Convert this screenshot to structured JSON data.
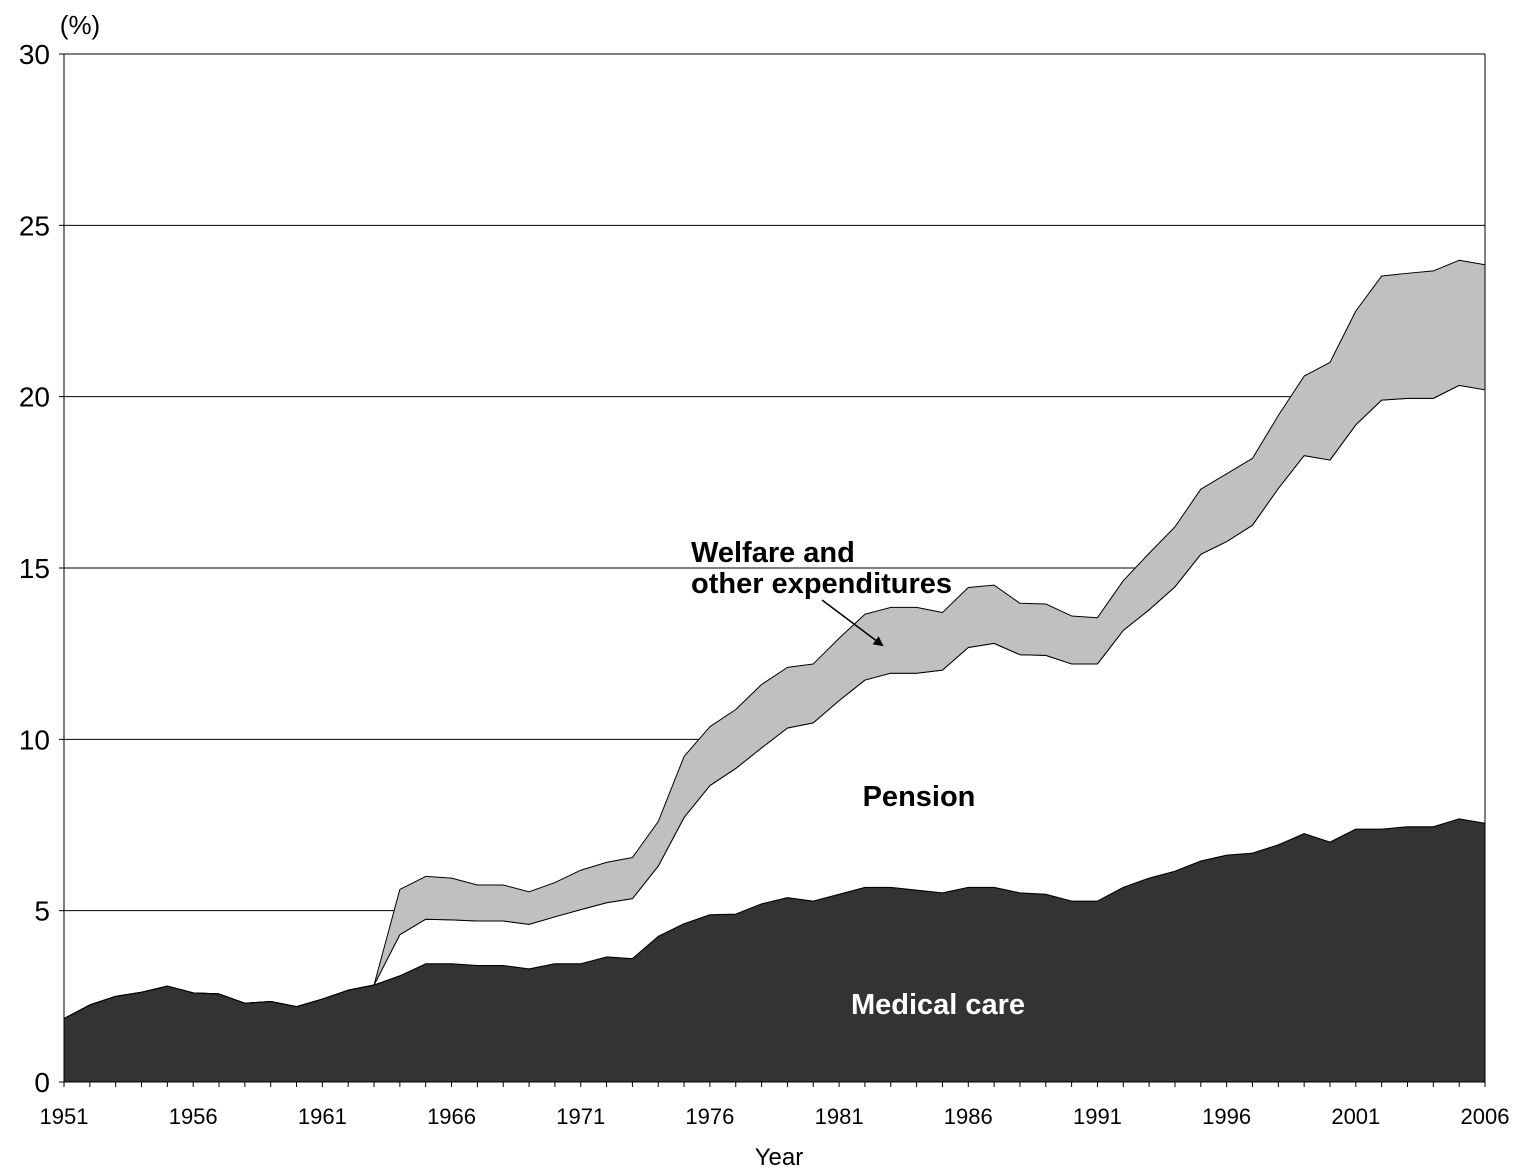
{
  "chart_data": {
    "type": "area",
    "stacked": true,
    "title": "",
    "ylabel_unit": "(%)",
    "xlabel": "Year",
    "ylim": [
      0,
      30
    ],
    "xlim": [
      1951,
      2006
    ],
    "yticks": [
      "0",
      "5",
      "10",
      "15",
      "20",
      "25",
      "30"
    ],
    "xticks": [
      "1951",
      "1956",
      "1961",
      "1966",
      "1971",
      "1976",
      "1981",
      "1986",
      "1991",
      "1996",
      "2001",
      "2006"
    ],
    "grid": "horizontal",
    "x": [
      1951,
      1952,
      1953,
      1954,
      1955,
      1956,
      1957,
      1958,
      1959,
      1960,
      1961,
      1962,
      1963,
      1964,
      1965,
      1966,
      1967,
      1968,
      1969,
      1970,
      1971,
      1972,
      1973,
      1974,
      1975,
      1976,
      1977,
      1978,
      1979,
      1980,
      1981,
      1982,
      1983,
      1984,
      1985,
      1986,
      1987,
      1988,
      1989,
      1990,
      1991,
      1992,
      1993,
      1994,
      1995,
      1996,
      1997,
      1998,
      1999,
      2000,
      2001,
      2002,
      2003,
      2004,
      2005,
      2006
    ],
    "series": [
      {
        "name": "Medical care",
        "color": "#333333",
        "values": [
          1.85,
          2.25,
          2.5,
          2.62,
          2.8,
          2.6,
          2.57,
          2.3,
          2.35,
          2.2,
          2.42,
          2.68,
          2.83,
          3.1,
          3.45,
          3.45,
          3.4,
          3.4,
          3.3,
          3.45,
          3.45,
          3.65,
          3.6,
          4.25,
          4.62,
          4.88,
          4.9,
          5.2,
          5.38,
          5.28,
          5.48,
          5.68,
          5.68,
          5.6,
          5.52,
          5.68,
          5.68,
          5.52,
          5.48,
          5.28,
          5.28,
          5.68,
          5.95,
          6.15,
          6.45,
          6.62,
          6.68,
          6.92,
          7.25,
          7.0,
          7.38,
          7.38,
          7.45,
          7.45,
          7.68,
          7.55
        ]
      },
      {
        "name": "Pension",
        "color": "#ffffff",
        "values": [
          0,
          0,
          0,
          0,
          0,
          0,
          0,
          0,
          0,
          0,
          0,
          0,
          0,
          1.2,
          1.3,
          1.28,
          1.3,
          1.3,
          1.3,
          1.37,
          1.58,
          1.58,
          1.75,
          2.05,
          3.1,
          3.77,
          4.25,
          4.55,
          4.95,
          5.2,
          5.65,
          6.05,
          6.25,
          6.33,
          6.5,
          7.0,
          7.12,
          6.95,
          6.97,
          6.92,
          6.92,
          7.5,
          7.83,
          8.3,
          8.95,
          9.15,
          9.57,
          10.4,
          11.03,
          11.15,
          11.8,
          12.52,
          12.5,
          12.5,
          12.65,
          12.65
        ]
      },
      {
        "name": "Welfare and other expenditures",
        "color": "#c0c0c0",
        "values": [
          0,
          0,
          0,
          0,
          0,
          0,
          0,
          0,
          0,
          0,
          0,
          0,
          0,
          1.32,
          1.25,
          1.22,
          1.05,
          1.05,
          0.95,
          1.0,
          1.15,
          1.18,
          1.2,
          1.3,
          1.78,
          1.72,
          1.72,
          1.85,
          1.77,
          1.72,
          1.82,
          1.92,
          1.92,
          1.92,
          1.68,
          1.75,
          1.7,
          1.5,
          1.5,
          1.4,
          1.35,
          1.45,
          1.65,
          1.75,
          1.9,
          1.98,
          1.95,
          2.13,
          2.32,
          2.85,
          3.32,
          3.62,
          3.65,
          3.72,
          3.65,
          3.65
        ]
      }
    ],
    "annotations": {
      "welfare_line1": "Welfare and",
      "welfare_line2": "other expenditures",
      "pension": "Pension",
      "medical": "Medical care"
    }
  }
}
